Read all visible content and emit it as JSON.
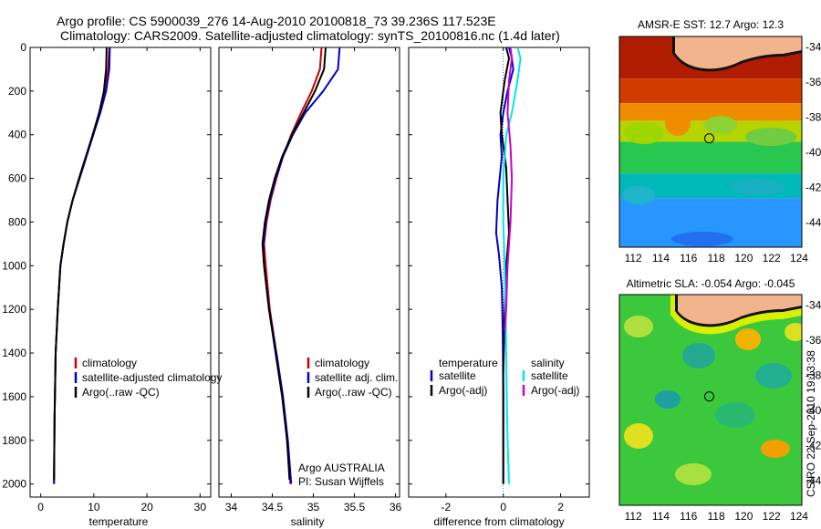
{
  "header": {
    "title_line1": "Argo profile: CS 5900039_276 14-Aug-2010 20100818_73 39.236S 117.523E",
    "title_line2": "Climatology: CARS2009. Satellite-adjusted climatology: synTS_20100816.nc (1.4d later)"
  },
  "colors": {
    "climatology": "#cc0000",
    "satellite": "#0000cc",
    "argo": "#000000",
    "sal_satellite": "#00e5ee",
    "sal_argo": "#cc00cc"
  },
  "credit": {
    "argo_country": "Argo AUSTRALIA",
    "pi": "PI: Susan Wijffels",
    "stamp": "CSIRO 22-Sep-2010 19:13:38"
  },
  "chart_data": [
    {
      "type": "line",
      "name": "temperature-profile",
      "xlabel": "temperature",
      "ylabel": "",
      "xlim": [
        -2,
        32
      ],
      "ylim": [
        2060,
        0
      ],
      "xticks": [
        0,
        10,
        20,
        30
      ],
      "yticks": [
        0,
        200,
        400,
        600,
        800,
        1000,
        1200,
        1400,
        1600,
        1800,
        2000
      ],
      "legend": [
        "climatology",
        "satellite-adjusted climatology",
        "Argo(..raw -QC)"
      ],
      "series": [
        {
          "name": "climatology",
          "color": "#cc0000",
          "x": [
            12.9,
            12.7,
            12.0,
            11.0,
            9.8,
            8.6,
            7.3,
            6.0,
            5.0,
            4.3,
            3.7,
            3.2,
            2.8,
            2.6,
            2.5
          ],
          "y": [
            0,
            100,
            200,
            300,
            400,
            500,
            600,
            700,
            800,
            900,
            1000,
            1200,
            1400,
            1700,
            2000
          ]
        },
        {
          "name": "satellite-adjusted climatology",
          "color": "#0000cc",
          "x": [
            13.0,
            12.9,
            12.3,
            11.2,
            9.9,
            8.6,
            7.3,
            6.0,
            5.0,
            4.3,
            3.7,
            3.2,
            2.8,
            2.6,
            2.5
          ],
          "y": [
            0,
            100,
            200,
            300,
            400,
            500,
            600,
            700,
            800,
            900,
            1000,
            1200,
            1400,
            1700,
            2000
          ]
        },
        {
          "name": "Argo(..raw -QC)",
          "color": "#000000",
          "x": [
            12.4,
            12.3,
            11.9,
            11.0,
            9.8,
            8.5,
            7.2,
            6.0,
            5.0,
            4.3,
            3.7,
            3.2,
            2.8,
            2.6,
            2.5
          ],
          "y": [
            0,
            100,
            200,
            300,
            400,
            500,
            600,
            700,
            800,
            900,
            1000,
            1200,
            1400,
            1700,
            1980
          ]
        }
      ]
    },
    {
      "type": "line",
      "name": "salinity-profile",
      "xlabel": "salinity",
      "xlim": [
        33.85,
        36.05
      ],
      "ylim": [
        2060,
        0
      ],
      "xticks": [
        34,
        34.5,
        35,
        35.5,
        36
      ],
      "xticklabels": [
        "34",
        "34.5",
        "35",
        "35.5",
        "36"
      ],
      "legend": [
        "climatology",
        "satellite adj. clim.",
        "Argo(..raw -QC)"
      ],
      "series": [
        {
          "name": "climatology",
          "color": "#cc0000",
          "x": [
            35.1,
            35.08,
            34.98,
            34.85,
            34.73,
            34.63,
            34.55,
            34.48,
            34.43,
            34.4,
            34.42,
            34.47,
            34.55,
            34.63,
            34.68,
            34.72
          ],
          "y": [
            0,
            100,
            200,
            300,
            400,
            500,
            600,
            700,
            800,
            900,
            1000,
            1200,
            1400,
            1600,
            1800,
            2000
          ]
        },
        {
          "name": "satellite adj. clim.",
          "color": "#0000cc",
          "x": [
            35.32,
            35.3,
            35.12,
            34.9,
            34.75,
            34.63,
            34.54,
            34.47,
            34.42,
            34.39,
            34.4,
            34.46,
            34.55,
            34.63,
            34.69,
            34.73
          ],
          "y": [
            0,
            100,
            200,
            300,
            400,
            500,
            600,
            700,
            800,
            900,
            1000,
            1200,
            1400,
            1600,
            1800,
            2000
          ]
        },
        {
          "name": "Argo(..raw -QC)",
          "color": "#000000",
          "x": [
            35.15,
            35.13,
            35.02,
            34.88,
            34.74,
            34.62,
            34.53,
            34.46,
            34.41,
            34.38,
            34.4,
            34.46,
            34.54,
            34.62,
            34.68,
            34.71
          ],
          "y": [
            0,
            100,
            200,
            300,
            400,
            500,
            600,
            700,
            800,
            900,
            1000,
            1200,
            1400,
            1600,
            1800,
            1980
          ]
        }
      ]
    },
    {
      "type": "line",
      "name": "difference-profile",
      "xlabel": "difference from climatology",
      "xlim": [
        -3.3,
        3.0
      ],
      "ylim": [
        2060,
        0
      ],
      "xticks": [
        -2,
        0,
        2
      ],
      "legend_groups": [
        {
          "title": "temperature",
          "entries": [
            "satellite",
            "Argo(-adj)"
          ]
        },
        {
          "title": "salinity",
          "entries": [
            "satellite",
            "Argo(-adj)"
          ]
        }
      ],
      "series": [
        {
          "name": "temperature satellite",
          "color": "#0000cc",
          "x": [
            0.2,
            0.3,
            0.35,
            0.15,
            0.0,
            -0.1,
            -0.05,
            -0.2,
            -0.25,
            -0.15,
            -0.05,
            -0.02,
            0.0,
            0.0
          ],
          "y": [
            0,
            50,
            100,
            200,
            300,
            400,
            500,
            700,
            850,
            950,
            1100,
            1300,
            1600,
            2000
          ]
        },
        {
          "name": "temperature Argo(-adj)",
          "color": "#000000",
          "x": [
            0.1,
            0.2,
            0.05,
            -0.1,
            -0.05,
            0.1,
            0.15,
            0.2,
            0.1,
            0.05,
            0.0,
            0.0
          ],
          "y": [
            0,
            50,
            150,
            300,
            400,
            550,
            700,
            850,
            1000,
            1200,
            1500,
            2000
          ]
        },
        {
          "name": "salinity satellite",
          "color": "#00e5ee",
          "x": [
            0.5,
            0.6,
            0.5,
            0.3,
            0.1,
            0.0,
            0.0,
            0.05,
            0.08,
            0.1,
            0.12,
            0.15,
            0.2
          ],
          "y": [
            0,
            50,
            150,
            300,
            400,
            600,
            800,
            1000,
            1200,
            1400,
            1600,
            1800,
            2000
          ]
        },
        {
          "name": "salinity Argo(-adj)",
          "color": "#cc00cc",
          "x": [
            0.25,
            0.3,
            0.2,
            0.15,
            0.25,
            0.3,
            0.25,
            0.15,
            0.1,
            0.05
          ],
          "y": [
            0,
            50,
            150,
            300,
            450,
            600,
            800,
            1000,
            1200,
            1300
          ]
        }
      ]
    },
    {
      "type": "heatmap",
      "name": "sst-map",
      "title": "AMSR-E SST: 12.7 Argo: 12.3",
      "xlim": [
        111,
        124.2
      ],
      "ylim": [
        -45.4,
        -33.4
      ],
      "xticks": [
        112,
        114,
        116,
        118,
        120,
        122,
        124
      ],
      "yticks": [
        -34,
        -36,
        -38,
        -40,
        -42,
        -44
      ],
      "marker": {
        "lon": 117.5,
        "lat": -39.2
      },
      "bands": [
        {
          "lat_top": -33.4,
          "lat_bottom": -35.8,
          "color": "#b01c00"
        },
        {
          "lat_top": -35.8,
          "lat_bottom": -37.2,
          "color": "#d03c00"
        },
        {
          "lat_top": -37.2,
          "lat_bottom": -38.2,
          "color": "#f08c00"
        },
        {
          "lat_top": -38.2,
          "lat_bottom": -39.4,
          "color": "#b6d400"
        },
        {
          "lat_top": -39.4,
          "lat_bottom": -41.2,
          "color": "#28c850"
        },
        {
          "lat_top": -41.2,
          "lat_bottom": -42.6,
          "color": "#00b8b8"
        },
        {
          "lat_top": -42.6,
          "lat_bottom": -45.4,
          "color": "#2896ff"
        }
      ]
    },
    {
      "type": "heatmap",
      "name": "sla-map",
      "title": "Altimetric SLA: -0.054 Argo: -0.045",
      "xlim": [
        111,
        124.2
      ],
      "ylim": [
        -45.4,
        -33.4
      ],
      "xticks": [
        112,
        114,
        116,
        118,
        120,
        122,
        124
      ],
      "yticks": [
        -34,
        -36,
        -38,
        -40,
        -42,
        -44
      ],
      "marker": {
        "lon": 117.5,
        "lat": -39.2
      },
      "bands": [
        {
          "lat_top": -33.4,
          "lat_bottom": -45.4,
          "color": "#3cc83c"
        }
      ]
    }
  ]
}
